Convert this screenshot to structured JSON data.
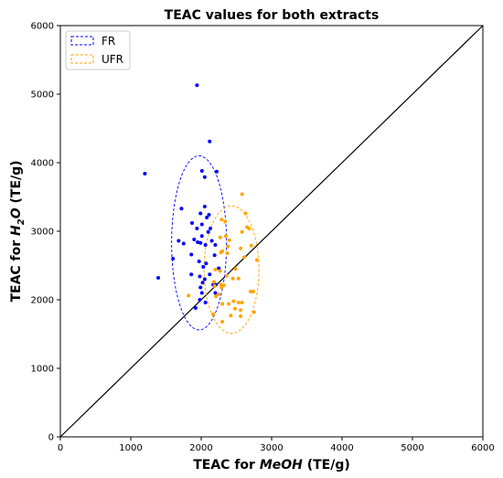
{
  "chart_data": {
    "type": "scatter",
    "title": "TEAC values for both extracts",
    "xlabel_prefix": "TEAC for ",
    "xlabel_var": "MeOH",
    "xlabel_suffix": " (TE/g)",
    "ylabel_prefix": "TEAC for ",
    "ylabel_var": "H",
    "ylabel_sub": "2",
    "ylabel_var2": "O",
    "ylabel_suffix": " (TE/g)",
    "xlim": [
      0,
      6000
    ],
    "ylim": [
      0,
      6000
    ],
    "xticks": [
      "0",
      "1000",
      "2000",
      "3000",
      "4000",
      "5000",
      "6000"
    ],
    "yticks": [
      "0",
      "1000",
      "2000",
      "3000",
      "4000",
      "5000",
      "6000"
    ],
    "grid": false,
    "legend_placement": "top-left",
    "identity_line": {
      "x": [
        0,
        6000
      ],
      "y": [
        0,
        6000
      ],
      "color": "#000000"
    },
    "series": [
      {
        "name": "FR",
        "color": "#0000ff",
        "ellipse": {
          "cx": 1970,
          "cy": 2830,
          "rx": 390,
          "ry": 1270
        },
        "points": [
          [
            1940,
            5130
          ],
          [
            2120,
            4310
          ],
          [
            1200,
            3840
          ],
          [
            2010,
            3880
          ],
          [
            2220,
            3870
          ],
          [
            2050,
            3790
          ],
          [
            1720,
            3330
          ],
          [
            2050,
            3360
          ],
          [
            1990,
            3260
          ],
          [
            2110,
            3240
          ],
          [
            2080,
            3200
          ],
          [
            1870,
            3120
          ],
          [
            2010,
            3100
          ],
          [
            2130,
            3040
          ],
          [
            1940,
            3040
          ],
          [
            2100,
            2990
          ],
          [
            2010,
            2930
          ],
          [
            1900,
            2880
          ],
          [
            1680,
            2860
          ],
          [
            1750,
            2820
          ],
          [
            2150,
            2860
          ],
          [
            1950,
            2840
          ],
          [
            1990,
            2830
          ],
          [
            2200,
            2800
          ],
          [
            2060,
            2800
          ],
          [
            1860,
            2660
          ],
          [
            2190,
            2650
          ],
          [
            1600,
            2600
          ],
          [
            1970,
            2560
          ],
          [
            2070,
            2530
          ],
          [
            2030,
            2480
          ],
          [
            2250,
            2460
          ],
          [
            1860,
            2370
          ],
          [
            2120,
            2370
          ],
          [
            1980,
            2340
          ],
          [
            2050,
            2300
          ],
          [
            1390,
            2320
          ],
          [
            2020,
            2250
          ],
          [
            2170,
            2220
          ],
          [
            2210,
            2220
          ],
          [
            1990,
            2180
          ],
          [
            2010,
            2100
          ],
          [
            2200,
            2100
          ],
          [
            1980,
            2000
          ],
          [
            2060,
            1960
          ],
          [
            1920,
            1880
          ]
        ]
      },
      {
        "name": "UFR",
        "color": "#ffa500",
        "ellipse": {
          "cx": 2430,
          "cy": 2440,
          "rx": 390,
          "ry": 930
        },
        "points": [
          [
            2580,
            3540
          ],
          [
            2630,
            3260
          ],
          [
            2290,
            3170
          ],
          [
            2340,
            3140
          ],
          [
            2650,
            3060
          ],
          [
            2680,
            3040
          ],
          [
            2580,
            2990
          ],
          [
            2350,
            2930
          ],
          [
            2270,
            2910
          ],
          [
            2400,
            2870
          ],
          [
            2710,
            2790
          ],
          [
            2380,
            2780
          ],
          [
            2560,
            2750
          ],
          [
            2300,
            2710
          ],
          [
            2280,
            2690
          ],
          [
            2370,
            2680
          ],
          [
            2610,
            2620
          ],
          [
            2790,
            2580
          ],
          [
            2490,
            2450
          ],
          [
            2200,
            2440
          ],
          [
            2270,
            2420
          ],
          [
            2360,
            2350
          ],
          [
            2450,
            2310
          ],
          [
            2530,
            2310
          ],
          [
            2180,
            2260
          ],
          [
            2280,
            2220
          ],
          [
            2320,
            2210
          ],
          [
            2190,
            2200
          ],
          [
            2290,
            2180
          ],
          [
            2700,
            2120
          ],
          [
            2740,
            2120
          ],
          [
            2250,
            2080
          ],
          [
            1820,
            2060
          ],
          [
            2210,
            2050
          ],
          [
            2460,
            1980
          ],
          [
            2530,
            1960
          ],
          [
            2580,
            1960
          ],
          [
            2300,
            1940
          ],
          [
            2390,
            1940
          ],
          [
            2480,
            1870
          ],
          [
            2560,
            1850
          ],
          [
            2750,
            1820
          ],
          [
            2170,
            1790
          ],
          [
            2420,
            1770
          ],
          [
            2560,
            1760
          ],
          [
            2300,
            1680
          ]
        ]
      }
    ]
  }
}
